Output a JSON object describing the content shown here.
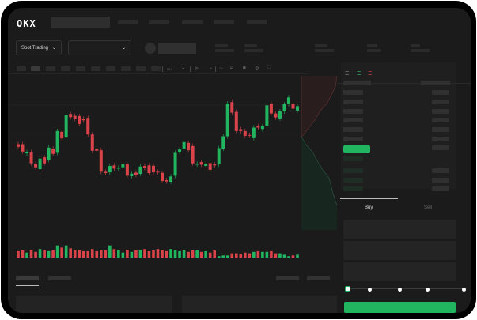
{
  "header": {
    "logo": "OKX"
  },
  "market": {
    "mode_label": "Spot Trading",
    "pair_value": ""
  },
  "trade": {
    "tabs": [
      {
        "label": "Buy",
        "active": true
      },
      {
        "label": "Sell",
        "active": false
      }
    ],
    "slider_percent": 0,
    "submit_color": "#22b560"
  },
  "colors": {
    "up": "#22b560",
    "down": "#d9434a",
    "bg": "#1b1b1b"
  },
  "icons": [
    "chevron-down-icon",
    "line-icon",
    "ruler-icon",
    "camera-icon",
    "gear-icon",
    "fullscreen-icon",
    "orderbook-both-icon",
    "orderbook-bids-icon",
    "orderbook-asks-icon"
  ],
  "chart_data": {
    "type": "candlestick",
    "ylim": [
      30,
      370
    ],
    "candles": [
      [
        185,
        175
      ],
      [
        185,
        157
      ],
      [
        150,
        155
      ],
      [
        155,
        112
      ],
      [
        110,
        97
      ],
      [
        90,
        130
      ],
      [
        135,
        112
      ],
      [
        125,
        172
      ],
      [
        168,
        148
      ],
      [
        152,
        235
      ],
      [
        232,
        207
      ],
      [
        210,
        295
      ],
      [
        300,
        288
      ],
      [
        293,
        282
      ],
      [
        292,
        262
      ],
      [
        282,
        276
      ],
      [
        285,
        222
      ],
      [
        222,
        160
      ],
      [
        168,
        160
      ],
      [
        162,
        80
      ],
      [
        80,
        75
      ],
      [
        78,
        102
      ],
      [
        104,
        92
      ],
      [
        92,
        95
      ],
      [
        97,
        108
      ],
      [
        108,
        65
      ],
      [
        63,
        73
      ],
      [
        77,
        68
      ],
      [
        72,
        100
      ],
      [
        102,
        95
      ],
      [
        104,
        75
      ],
      [
        103,
        78
      ],
      [
        80,
        77
      ],
      [
        76,
        45
      ],
      [
        48,
        43
      ],
      [
        42,
        62
      ],
      [
        65,
        152
      ],
      [
        155,
        165
      ],
      [
        168,
        193
      ],
      [
        190,
        162
      ],
      [
        178,
        112
      ],
      [
        108,
        110
      ],
      [
        117,
        107
      ],
      [
        102,
        110
      ],
      [
        113,
        87
      ],
      [
        108,
        104
      ],
      [
        108,
        170
      ],
      [
        168,
        215
      ],
      [
        215,
        340
      ],
      [
        345,
        305
      ],
      [
        308,
        235
      ],
      [
        242,
        235
      ],
      [
        235,
        217
      ],
      [
        220,
        217
      ],
      [
        208,
        248
      ],
      [
        253,
        248
      ],
      [
        243,
        253
      ],
      [
        255,
        333
      ],
      [
        340,
        302
      ],
      [
        302,
        287
      ],
      [
        283,
        310
      ],
      [
        310,
        337
      ],
      [
        338,
        363
      ],
      [
        338,
        320
      ],
      [
        313,
        330
      ]
    ],
    "volumes": [
      9,
      10,
      7,
      11,
      8,
      12,
      10,
      9,
      10,
      17,
      14,
      17,
      13,
      11,
      11,
      9,
      9,
      12,
      9,
      11,
      10,
      17,
      12,
      11,
      7,
      11,
      8,
      11,
      11,
      12,
      9,
      10,
      12,
      11,
      9,
      12,
      11,
      9,
      11,
      8,
      10,
      10,
      8,
      9,
      7,
      10,
      2,
      3,
      3,
      6,
      6,
      5,
      7,
      6,
      8,
      9,
      8,
      8,
      9,
      6,
      6,
      4,
      2,
      3,
      4
    ]
  }
}
